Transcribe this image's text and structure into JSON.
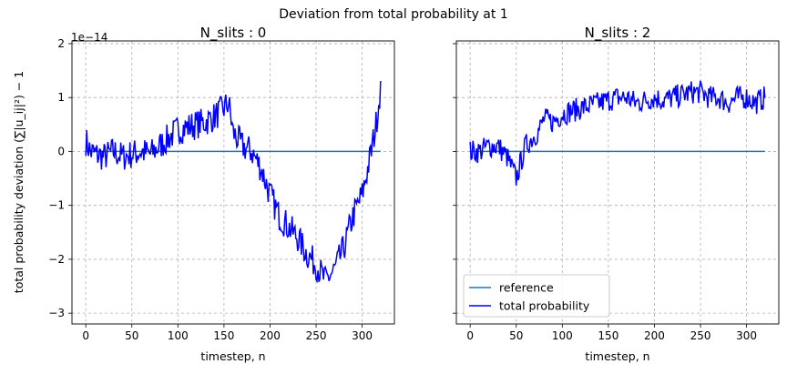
{
  "suptitle": "Deviation from total probability at 1",
  "offset_text": "1e−14",
  "ylabel": "total probability deviation",
  "ylabel_formula": "(∑|u_ij|²) − 1",
  "chart_data": [
    {
      "type": "line",
      "title": "N_slits : 0",
      "xlabel": "timestep, n",
      "ylabel": "total probability deviation (Σ|u_ij|²) − 1",
      "y_scale_factor": 1e-14,
      "xlim": [
        -15,
        335
      ],
      "ylim": [
        -3.2,
        2.05
      ],
      "xticks": [
        0,
        50,
        100,
        150,
        200,
        250,
        300
      ],
      "yticks": [
        -3,
        -2,
        -1,
        0,
        1,
        2
      ],
      "grid": true,
      "series": [
        {
          "name": "reference",
          "color": "#1f77b4",
          "x": [
            0,
            320
          ],
          "y": [
            0,
            0
          ]
        },
        {
          "name": "total probability",
          "color": "#0000ff",
          "noise": 0.28,
          "x": [
            0,
            5,
            10,
            20,
            30,
            40,
            50,
            60,
            70,
            80,
            90,
            100,
            110,
            120,
            130,
            140,
            150,
            155,
            160,
            170,
            180,
            190,
            200,
            210,
            220,
            230,
            240,
            250,
            260,
            270,
            280,
            290,
            300,
            305,
            310,
            315,
            320
          ],
          "y": [
            0.2,
            0.0,
            -0.05,
            -0.1,
            0.0,
            -0.1,
            -0.05,
            0.0,
            -0.05,
            0.1,
            0.25,
            0.4,
            0.45,
            0.5,
            0.55,
            0.65,
            0.8,
            0.9,
            0.35,
            0.1,
            0.0,
            -0.3,
            -0.8,
            -1.2,
            -1.4,
            -1.6,
            -1.9,
            -2.1,
            -2.4,
            -2.2,
            -1.8,
            -1.2,
            -0.8,
            -0.4,
            0.0,
            0.5,
            1.2
          ]
        }
      ]
    },
    {
      "type": "line",
      "title": "N_slits : 2",
      "xlabel": "timestep, n",
      "y_scale_factor": 1e-14,
      "xlim": [
        -15,
        335
      ],
      "ylim": [
        -3.2,
        2.05
      ],
      "xticks": [
        0,
        50,
        100,
        150,
        200,
        250,
        300
      ],
      "yticks": [
        -3,
        -2,
        -1,
        0,
        1,
        2
      ],
      "grid": true,
      "legend": {
        "placement": "lower-left",
        "entries": [
          "reference",
          "total probability"
        ]
      },
      "series": [
        {
          "name": "reference",
          "color": "#1f77b4",
          "x": [
            0,
            320
          ],
          "y": [
            0,
            0
          ]
        },
        {
          "name": "total probability",
          "color": "#0000ff",
          "noise": 0.22,
          "x": [
            0,
            10,
            20,
            30,
            40,
            45,
            50,
            55,
            60,
            70,
            75,
            80,
            90,
            100,
            110,
            120,
            130,
            140,
            150,
            160,
            170,
            180,
            190,
            200,
            210,
            220,
            230,
            240,
            250,
            260,
            270,
            280,
            290,
            300,
            310,
            320
          ],
          "y": [
            0.0,
            0.0,
            0.1,
            0.1,
            -0.1,
            -0.3,
            -0.5,
            -0.2,
            0.1,
            0.3,
            0.4,
            0.6,
            0.55,
            0.7,
            0.75,
            0.8,
            0.85,
            0.9,
            0.95,
            1.0,
            1.0,
            0.9,
            0.95,
            1.0,
            0.95,
            1.0,
            1.05,
            1.1,
            1.1,
            1.0,
            1.0,
            0.9,
            1.0,
            1.0,
            0.9,
            1.0
          ]
        }
      ]
    }
  ]
}
